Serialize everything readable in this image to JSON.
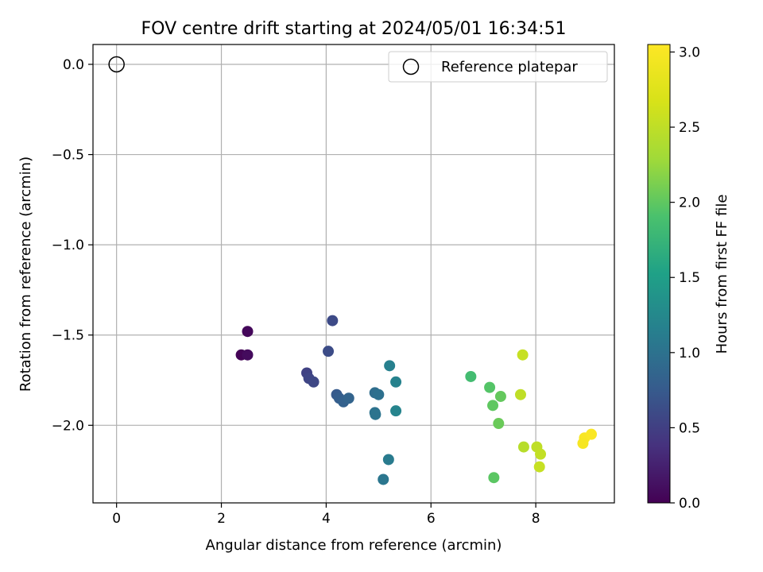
{
  "chart_data": {
    "type": "scatter",
    "title": "FOV centre drift starting at 2024/05/01 16:34:51",
    "xlabel": "Angular distance from reference (arcmin)",
    "ylabel": "Rotation from reference (arcmin)",
    "xlim": [
      -0.45,
      9.5
    ],
    "ylim": [
      -2.43,
      0.11
    ],
    "xticks": [
      0,
      2,
      4,
      6,
      8
    ],
    "xtick_labels": [
      "0",
      "2",
      "4",
      "6",
      "8"
    ],
    "yticks": [
      0.0,
      -0.5,
      -1.0,
      -1.5,
      -2.0
    ],
    "ytick_labels": [
      "0.0",
      "−0.5",
      "−1.0",
      "−1.5",
      "−2.0"
    ],
    "grid": true,
    "legend": {
      "placement": "top-right",
      "entries": [
        "Reference platepar"
      ]
    },
    "reference_point": {
      "x": 0,
      "y": 0,
      "label": "Reference platepar"
    },
    "colorbar": {
      "label": "Hours from first FF file",
      "colormap": "viridis",
      "range": [
        0.0,
        3.05
      ],
      "ticks": [
        0.0,
        0.5,
        1.0,
        1.5,
        2.0,
        2.5,
        3.0
      ],
      "tick_labels": [
        "0.0",
        "0.5",
        "1.0",
        "1.5",
        "2.0",
        "2.5",
        "3.0"
      ]
    },
    "points": [
      {
        "x": 2.5,
        "y": -1.48,
        "c": 0.05
      },
      {
        "x": 2.38,
        "y": -1.61,
        "c": 0.02
      },
      {
        "x": 2.5,
        "y": -1.61,
        "c": 0.08
      },
      {
        "x": 4.12,
        "y": -1.42,
        "c": 0.6
      },
      {
        "x": 4.04,
        "y": -1.59,
        "c": 0.62
      },
      {
        "x": 3.63,
        "y": -1.71,
        "c": 0.52
      },
      {
        "x": 3.67,
        "y": -1.74,
        "c": 0.55
      },
      {
        "x": 3.76,
        "y": -1.76,
        "c": 0.57
      },
      {
        "x": 4.2,
        "y": -1.83,
        "c": 0.75
      },
      {
        "x": 4.25,
        "y": -1.85,
        "c": 0.78
      },
      {
        "x": 4.33,
        "y": -1.87,
        "c": 0.82
      },
      {
        "x": 4.43,
        "y": -1.85,
        "c": 0.85
      },
      {
        "x": 4.93,
        "y": -1.82,
        "c": 0.95
      },
      {
        "x": 5.0,
        "y": -1.83,
        "c": 0.98
      },
      {
        "x": 4.93,
        "y": -1.93,
        "c": 1.0
      },
      {
        "x": 4.94,
        "y": -1.94,
        "c": 1.02
      },
      {
        "x": 5.21,
        "y": -1.67,
        "c": 1.15
      },
      {
        "x": 5.33,
        "y": -1.76,
        "c": 1.18
      },
      {
        "x": 5.33,
        "y": -1.92,
        "c": 1.2
      },
      {
        "x": 5.19,
        "y": -2.19,
        "c": 1.1
      },
      {
        "x": 5.09,
        "y": -2.3,
        "c": 1.05
      },
      {
        "x": 6.76,
        "y": -1.73,
        "c": 1.85
      },
      {
        "x": 7.12,
        "y": -1.79,
        "c": 1.95
      },
      {
        "x": 7.33,
        "y": -1.84,
        "c": 2.02
      },
      {
        "x": 7.18,
        "y": -1.89,
        "c": 2.0
      },
      {
        "x": 7.29,
        "y": -1.99,
        "c": 2.05
      },
      {
        "x": 7.2,
        "y": -2.29,
        "c": 1.98
      },
      {
        "x": 7.75,
        "y": -1.61,
        "c": 2.55
      },
      {
        "x": 7.71,
        "y": -1.83,
        "c": 2.5
      },
      {
        "x": 7.77,
        "y": -2.12,
        "c": 2.45
      },
      {
        "x": 8.02,
        "y": -2.12,
        "c": 2.5
      },
      {
        "x": 8.09,
        "y": -2.16,
        "c": 2.52
      },
      {
        "x": 8.07,
        "y": -2.23,
        "c": 2.55
      },
      {
        "x": 8.93,
        "y": -2.07,
        "c": 3.0
      },
      {
        "x": 9.06,
        "y": -2.05,
        "c": 3.02
      },
      {
        "x": 8.9,
        "y": -2.1,
        "c": 2.98
      }
    ]
  }
}
